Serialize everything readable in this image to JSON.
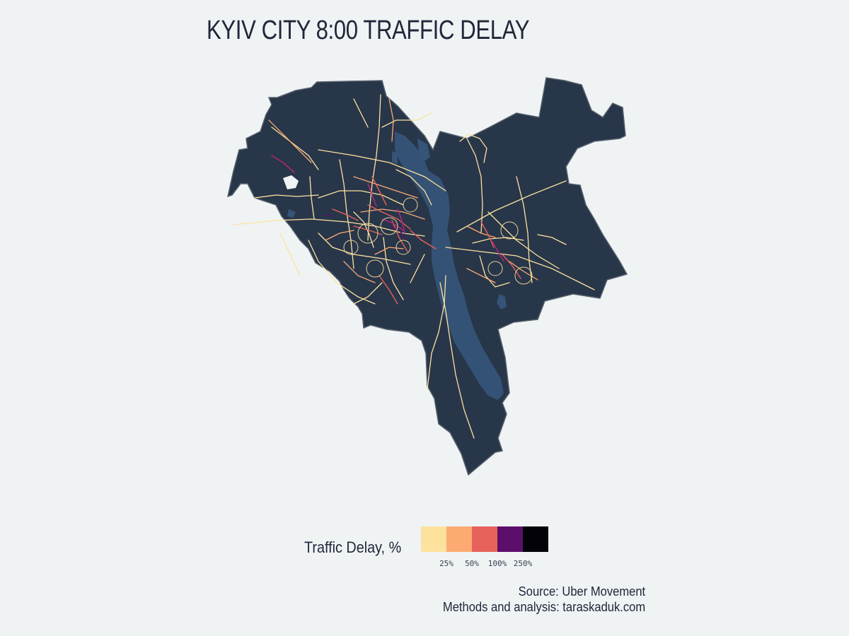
{
  "title": "KYIV CITY 8:00 TRAFFIC DELAY",
  "legend": {
    "title": "Traffic Delay, %",
    "bins": [
      {
        "color": "#fde29e"
      },
      {
        "color": "#fcaa72"
      },
      {
        "color": "#e8625c"
      },
      {
        "color": "#5c0f6a"
      },
      {
        "color": "#030208"
      }
    ],
    "ticks": [
      "25%",
      "50%",
      "100%",
      "250%"
    ]
  },
  "caption": {
    "line1": "Source: Uber Movement",
    "line2": "Methods and analysis: taraskaduk.com"
  },
  "colors": {
    "background": "#eff3f4",
    "land": "#28364a",
    "water": "#355477",
    "border": "#56606c"
  }
}
